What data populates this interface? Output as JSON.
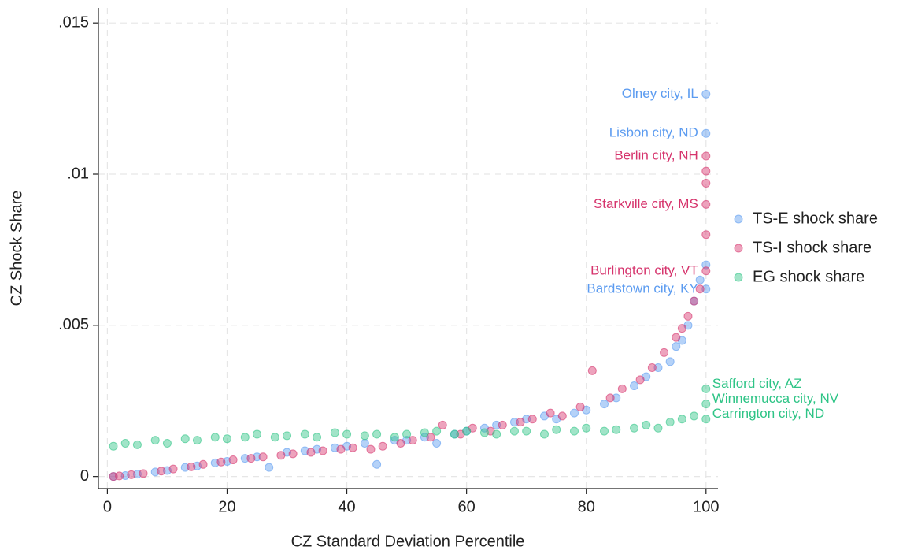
{
  "chart_data": {
    "type": "scatter",
    "x_label": "CZ Standard Deviation Percentile",
    "y_label": "CZ Shock Share",
    "xlim": [
      -1.5,
      102
    ],
    "ylim": [
      -0.0004,
      0.0155
    ],
    "xticks": [
      0,
      20,
      40,
      60,
      80,
      100
    ],
    "yticks": [
      0,
      {
        "value": 0.005,
        "label": ".005"
      },
      {
        "value": 0.01,
        "label": ".01"
      },
      {
        "value": 0.015,
        "label": ".015"
      }
    ],
    "grid": true,
    "legend": "right",
    "series": [
      {
        "name": "TS-E shock share",
        "color": "#5b9bf0",
        "x": [
          1,
          3,
          5,
          8,
          10,
          13,
          15,
          18,
          20,
          23,
          25,
          27,
          30,
          33,
          35,
          38,
          40,
          43,
          45,
          48,
          50,
          53,
          55,
          58,
          60,
          63,
          65,
          68,
          70,
          73,
          75,
          78,
          80,
          83,
          85,
          88,
          90,
          92,
          94,
          95,
          96,
          97,
          98,
          99,
          100,
          100,
          100,
          100
        ],
        "y": [
          0,
          3e-05,
          8e-05,
          0.00015,
          0.0002,
          0.0003,
          0.00035,
          0.00045,
          0.0005,
          0.0006,
          0.00065,
          0.0003,
          0.0008,
          0.00085,
          0.0009,
          0.00095,
          0.001,
          0.0011,
          0.0004,
          0.0012,
          0.0012,
          0.0013,
          0.0011,
          0.0014,
          0.0015,
          0.0016,
          0.0017,
          0.0018,
          0.0019,
          0.002,
          0.0019,
          0.0021,
          0.0022,
          0.0024,
          0.0026,
          0.003,
          0.0033,
          0.0036,
          0.0038,
          0.0043,
          0.0045,
          0.005,
          0.0058,
          0.0065,
          0.0062,
          0.007,
          0.01135,
          0.01265
        ]
      },
      {
        "name": "TS-I shock share",
        "color": "#d6336c",
        "x": [
          1,
          2,
          4,
          6,
          9,
          11,
          14,
          16,
          19,
          21,
          24,
          26,
          29,
          31,
          34,
          36,
          39,
          41,
          44,
          46,
          49,
          51,
          54,
          56,
          59,
          61,
          64,
          66,
          69,
          71,
          74,
          76,
          79,
          81,
          84,
          86,
          89,
          91,
          93,
          95,
          96,
          97,
          98,
          99,
          100,
          100,
          100,
          100,
          100,
          100
        ],
        "y": [
          0,
          2e-05,
          6e-05,
          0.0001,
          0.00018,
          0.00025,
          0.00032,
          0.0004,
          0.00048,
          0.00055,
          0.0006,
          0.00065,
          0.0007,
          0.00075,
          0.0008,
          0.00085,
          0.0009,
          0.00095,
          0.0009,
          0.001,
          0.0011,
          0.0012,
          0.0013,
          0.0017,
          0.0014,
          0.0016,
          0.0015,
          0.0017,
          0.0018,
          0.0019,
          0.0021,
          0.002,
          0.0023,
          0.0035,
          0.0026,
          0.0029,
          0.0032,
          0.0036,
          0.0041,
          0.0046,
          0.0049,
          0.0053,
          0.0058,
          0.0062,
          0.0068,
          0.008,
          0.009,
          0.0097,
          0.0101,
          0.0106
        ]
      },
      {
        "name": "EG shock share",
        "color": "#2ec486",
        "x": [
          1,
          3,
          5,
          8,
          10,
          13,
          15,
          18,
          20,
          23,
          25,
          28,
          30,
          33,
          35,
          38,
          40,
          43,
          45,
          48,
          50,
          53,
          55,
          58,
          60,
          63,
          65,
          68,
          70,
          73,
          75,
          78,
          80,
          83,
          85,
          88,
          90,
          92,
          94,
          96,
          98,
          100,
          100,
          100
        ],
        "y": [
          0.001,
          0.0011,
          0.00105,
          0.0012,
          0.0011,
          0.00125,
          0.0012,
          0.0013,
          0.00125,
          0.0013,
          0.0014,
          0.0013,
          0.00135,
          0.0014,
          0.0013,
          0.00145,
          0.0014,
          0.00135,
          0.0014,
          0.0013,
          0.0014,
          0.00145,
          0.0015,
          0.0014,
          0.0015,
          0.00145,
          0.0014,
          0.0015,
          0.0015,
          0.0014,
          0.00155,
          0.0015,
          0.0016,
          0.0015,
          0.00155,
          0.0016,
          0.0017,
          0.0016,
          0.0018,
          0.0019,
          0.002,
          0.0019,
          0.0024,
          0.0029
        ]
      }
    ],
    "annotations": [
      {
        "text": "Olney city, IL",
        "series": 0,
        "x": 100,
        "y": 0.01265
      },
      {
        "text": "Lisbon city, ND",
        "series": 0,
        "x": 100,
        "y": 0.01135
      },
      {
        "text": "Berlin city, NH",
        "series": 1,
        "x": 100,
        "y": 0.0106
      },
      {
        "text": "Starkville city, MS",
        "series": 1,
        "x": 100,
        "y": 0.009
      },
      {
        "text": "Burlington city, VT",
        "series": 1,
        "x": 100,
        "y": 0.0068
      },
      {
        "text": "Bardstown city, KY",
        "series": 0,
        "x": 100,
        "y": 0.0062
      },
      {
        "text": "Safford city, AZ",
        "series": 2,
        "x": 100,
        "y": 0.0029
      },
      {
        "text": "Winnemucca city, NV",
        "series": 2,
        "x": 100,
        "y": 0.0024
      },
      {
        "text": "Carrington city, ND",
        "series": 2,
        "x": 100,
        "y": 0.0019
      }
    ]
  }
}
